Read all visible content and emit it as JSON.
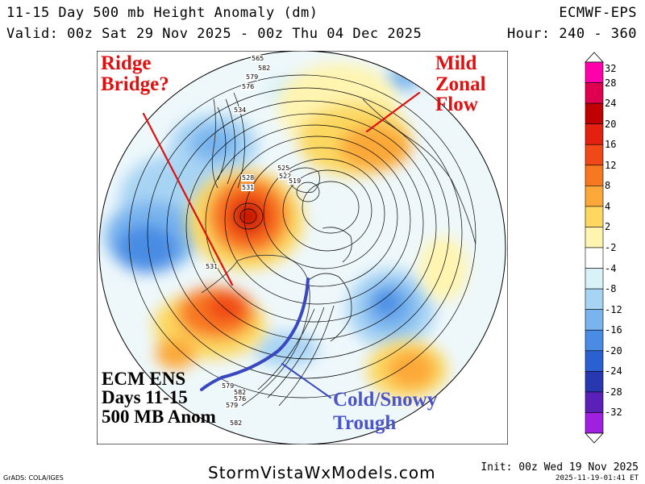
{
  "header": {
    "title": "11-15 Day 500 mb Height Anomaly (dm)",
    "model": "ECMWF-EPS",
    "valid": "Valid: 00z Sat 29 Nov 2025 - 00z Thu 04 Dec 2025",
    "hours": "Hour: 240 - 360"
  },
  "colorbar": {
    "labels": [
      "32",
      "28",
      "24",
      "20",
      "16",
      "12",
      "8",
      "4",
      "2",
      "-2",
      "-4",
      "-8",
      "-12",
      "-16",
      "-20",
      "-24",
      "-28",
      "-32"
    ],
    "colors": [
      "#ff00aa",
      "#e00050",
      "#c00000",
      "#e42010",
      "#f04818",
      "#f87820",
      "#fca838",
      "#fcd860",
      "#fff4b0",
      "#ffffff",
      "#d8f2f8",
      "#a8d4f4",
      "#78b4ee",
      "#4a8ce4",
      "#2a60d0",
      "#2838b0",
      "#5a20b8",
      "#a020e0"
    ]
  },
  "map": {
    "height_labels": [
      "565",
      "582",
      "579",
      "576",
      "534",
      "528",
      "531",
      "525",
      "522",
      "519",
      "531",
      "579",
      "582",
      "576",
      "579",
      "582"
    ],
    "colors": {
      "positive": "#f07a20",
      "positive_core": "#c81010",
      "negative": "#4a8ce4",
      "negative_core": "#2a50c0",
      "contour": "#000000",
      "coast": "#333333"
    }
  },
  "annotations": {
    "ridge": [
      "Ridge",
      "Bridge?"
    ],
    "zonal": [
      "Mild",
      "Zonal",
      "Flow"
    ],
    "ens": [
      "ECM ENS",
      "Days 11-15",
      "500 MB Anom"
    ],
    "trough": [
      "Cold/Snowy",
      "Trough"
    ],
    "colors": {
      "red": "#e01010",
      "blue": "#4b55c8"
    }
  },
  "footer": {
    "site": "StormVistaWxModels.com",
    "grads": "GrADS: COLA/IGES",
    "init": "Init: 00z Wed 19 Nov 2025",
    "timestamp": "2025-11-19-01:41 ET"
  }
}
